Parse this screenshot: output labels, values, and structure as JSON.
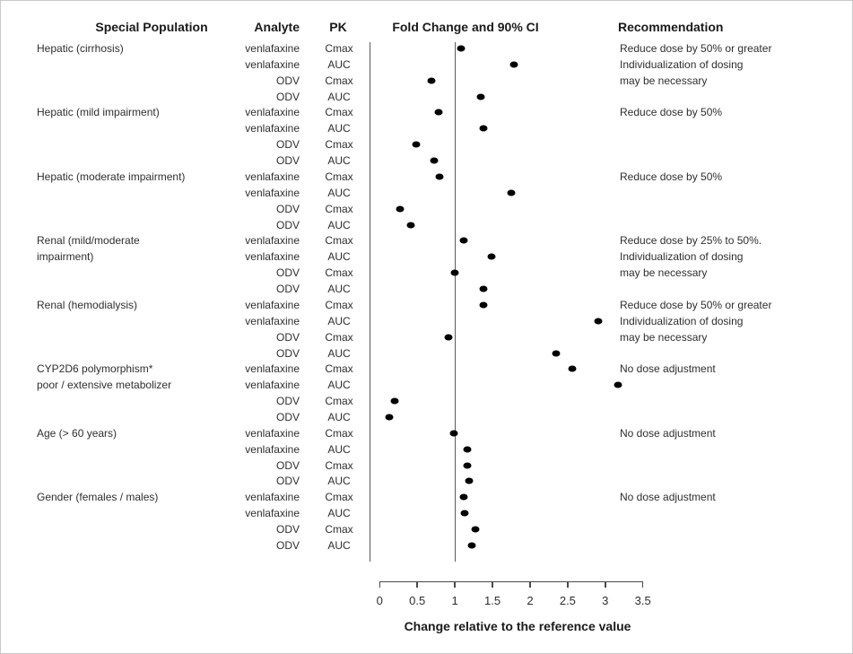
{
  "headers": {
    "special_population": "Special Population",
    "analyte": "Analyte",
    "pk": "PK",
    "fold_change": "Fold Change and 90% CI",
    "recommendation": "Recommendation"
  },
  "chart_data": {
    "type": "scatter",
    "title": "Fold Change and 90% CI",
    "xlabel": "Change relative to the reference value",
    "xlim": [
      0,
      3.5
    ],
    "x_ticks": [
      "0",
      "0.5",
      "1",
      "1.5",
      "2",
      "2.5",
      "3",
      "3.5"
    ],
    "reference_line_x": 1,
    "grid": false,
    "marker": "filled-black-dot",
    "groups": [
      {
        "population": [
          "Hepatic (cirrhosis)"
        ],
        "recommendation": [
          "Reduce dose by 50% or greater",
          "Individualization of dosing",
          "may be necessary"
        ],
        "rows": [
          {
            "analyte": "venlafaxine",
            "pk": "Cmax",
            "fold_change": 1.08
          },
          {
            "analyte": "venlafaxine",
            "pk": "AUC",
            "fold_change": 1.79
          },
          {
            "analyte": "ODV",
            "pk": "Cmax",
            "fold_change": 0.69
          },
          {
            "analyte": "ODV",
            "pk": "AUC",
            "fold_change": 1.34
          }
        ]
      },
      {
        "population": [
          "Hepatic (mild impairment)"
        ],
        "recommendation": [
          "Reduce dose by 50%"
        ],
        "rows": [
          {
            "analyte": "venlafaxine",
            "pk": "Cmax",
            "fold_change": 0.78
          },
          {
            "analyte": "venlafaxine",
            "pk": "AUC",
            "fold_change": 1.38
          },
          {
            "analyte": "ODV",
            "pk": "Cmax",
            "fold_change": 0.49
          },
          {
            "analyte": "ODV",
            "pk": "AUC",
            "fold_change": 0.73
          }
        ]
      },
      {
        "population": [
          "Hepatic (moderate impairment)"
        ],
        "recommendation": [
          "Reduce dose by 50%"
        ],
        "rows": [
          {
            "analyte": "venlafaxine",
            "pk": "Cmax",
            "fold_change": 0.8
          },
          {
            "analyte": "venlafaxine",
            "pk": "AUC",
            "fold_change": 1.75
          },
          {
            "analyte": "ODV",
            "pk": "Cmax",
            "fold_change": 0.27
          },
          {
            "analyte": "ODV",
            "pk": "AUC",
            "fold_change": 0.41
          }
        ]
      },
      {
        "population": [
          "Renal (mild/moderate",
          "impairment)"
        ],
        "recommendation": [
          "Reduce dose by 25% to 50%.",
          "Individualization of dosing",
          "may be necessary"
        ],
        "rows": [
          {
            "analyte": "venlafaxine",
            "pk": "Cmax",
            "fold_change": 1.12
          },
          {
            "analyte": "venlafaxine",
            "pk": "AUC",
            "fold_change": 1.49
          },
          {
            "analyte": "ODV",
            "pk": "Cmax",
            "fold_change": 1.0
          },
          {
            "analyte": "ODV",
            "pk": "AUC",
            "fold_change": 1.38
          }
        ]
      },
      {
        "population": [
          "Renal (hemodialysis)"
        ],
        "recommendation": [
          "Reduce dose by 50% or greater",
          "Individualization of dosing",
          "may be necessary"
        ],
        "rows": [
          {
            "analyte": "venlafaxine",
            "pk": "Cmax",
            "fold_change": 1.38
          },
          {
            "analyte": "venlafaxine",
            "pk": "AUC",
            "fold_change": 2.91
          },
          {
            "analyte": "ODV",
            "pk": "Cmax",
            "fold_change": 0.91
          },
          {
            "analyte": "ODV",
            "pk": "AUC",
            "fold_change": 2.35
          }
        ]
      },
      {
        "population": [
          "CYP2D6 polymorphism*",
          "poor / extensive metabolizer"
        ],
        "recommendation": [
          "No dose adjustment"
        ],
        "rows": [
          {
            "analyte": "venlafaxine",
            "pk": "Cmax",
            "fold_change": 2.56
          },
          {
            "analyte": "venlafaxine",
            "pk": "AUC",
            "fold_change": 3.17
          },
          {
            "analyte": "ODV",
            "pk": "Cmax",
            "fold_change": 0.2
          },
          {
            "analyte": "ODV",
            "pk": "AUC",
            "fold_change": 0.13
          }
        ]
      },
      {
        "population": [
          "Age (> 60 years)"
        ],
        "recommendation": [
          "No dose adjustment"
        ],
        "rows": [
          {
            "analyte": "venlafaxine",
            "pk": "Cmax",
            "fold_change": 0.99
          },
          {
            "analyte": "venlafaxine",
            "pk": "AUC",
            "fold_change": 1.17
          },
          {
            "analyte": "ODV",
            "pk": "Cmax",
            "fold_change": 1.17
          },
          {
            "analyte": "ODV",
            "pk": "AUC",
            "fold_change": 1.19
          }
        ]
      },
      {
        "population": [
          "Gender (females / males)"
        ],
        "recommendation": [
          "No dose adjustment"
        ],
        "rows": [
          {
            "analyte": "venlafaxine",
            "pk": "Cmax",
            "fold_change": 1.12
          },
          {
            "analyte": "venlafaxine",
            "pk": "AUC",
            "fold_change": 1.13
          },
          {
            "analyte": "ODV",
            "pk": "Cmax",
            "fold_change": 1.27
          },
          {
            "analyte": "ODV",
            "pk": "AUC",
            "fold_change": 1.23
          }
        ]
      }
    ],
    "colors": {
      "marker": "#000000",
      "line": "#5a5a5a",
      "text": "#2e2e2e"
    }
  }
}
